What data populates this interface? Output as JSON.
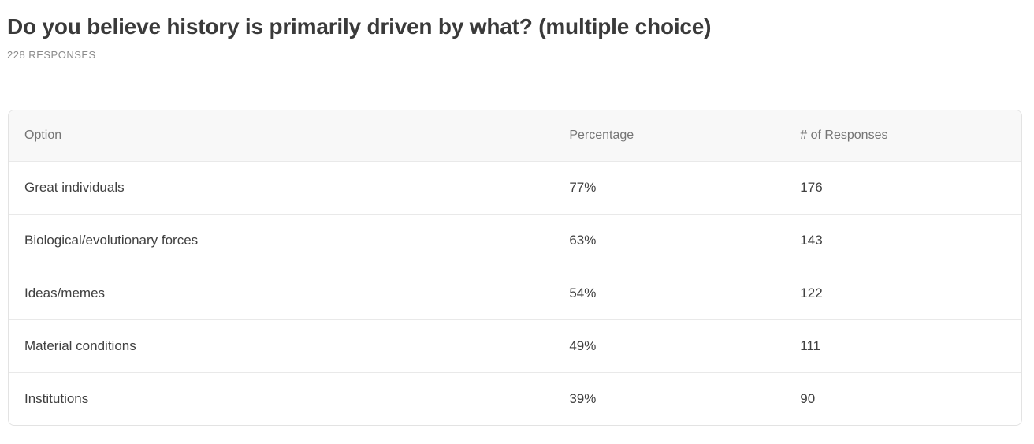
{
  "page": {
    "title": "Do you believe history is primarily driven by what? (multiple choice)",
    "responses_label": "228 RESPONSES"
  },
  "table": {
    "headers": {
      "option": "Option",
      "percentage": "Percentage",
      "responses": "# of Responses"
    },
    "rows": [
      {
        "option": "Great individuals",
        "percentage": "77%",
        "responses": "176"
      },
      {
        "option": "Biological/evolutionary forces",
        "percentage": "63%",
        "responses": "143"
      },
      {
        "option": "Ideas/memes",
        "percentage": "54%",
        "responses": "122"
      },
      {
        "option": "Material conditions",
        "percentage": "49%",
        "responses": "111"
      },
      {
        "option": "Institutions",
        "percentage": "39%",
        "responses": "90"
      }
    ]
  },
  "colors": {
    "title_text": "#3a3a3a",
    "muted_text": "#8b8b8b",
    "header_bg": "#f8f8f8",
    "header_text": "#757575",
    "cell_text": "#404040",
    "table_border": "#e3e3e3",
    "row_divider": "#e9e9e9",
    "page_bg": "#ffffff"
  },
  "chart_data": {
    "type": "table",
    "title": "Do you believe history is primarily driven by what? (multiple choice)",
    "subtitle": "228 RESPONSES",
    "total_responses": 228,
    "columns": [
      "Option",
      "Percentage",
      "# of Responses"
    ],
    "categories": [
      "Great individuals",
      "Biological/evolutionary forces",
      "Ideas/memes",
      "Material conditions",
      "Institutions"
    ],
    "series": [
      {
        "name": "Percentage",
        "values": [
          77,
          63,
          54,
          49,
          39
        ],
        "unit": "%"
      },
      {
        "name": "# of Responses",
        "values": [
          176,
          143,
          122,
          111,
          90
        ]
      }
    ]
  }
}
